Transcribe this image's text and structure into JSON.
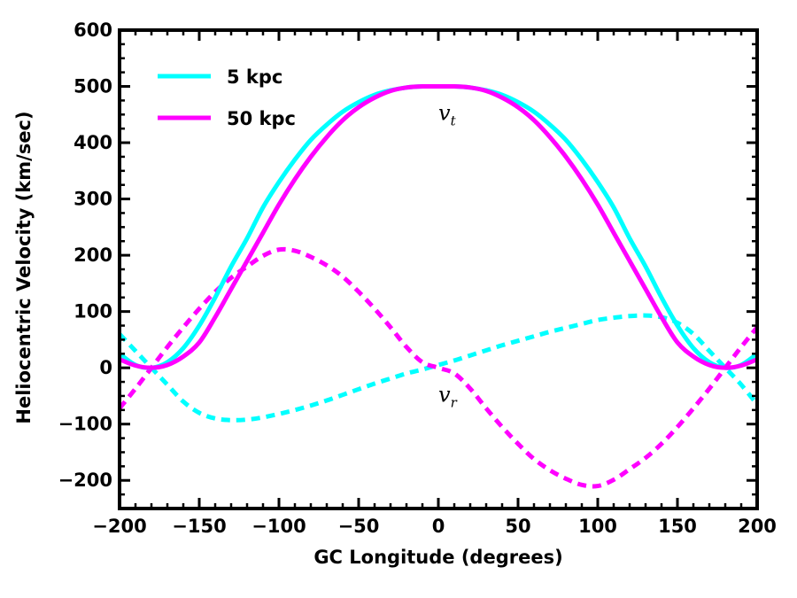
{
  "chart_data": {
    "type": "line",
    "title": "",
    "xlabel": "GC Longitude (degrees)",
    "ylabel": "Heliocentric Velocity (km/sec)",
    "xlim": [
      -200,
      200
    ],
    "ylim": [
      -250,
      600
    ],
    "xticks": [
      -200,
      -150,
      -100,
      -50,
      0,
      50,
      100,
      150,
      200
    ],
    "yticks": [
      -200,
      -100,
      0,
      100,
      200,
      300,
      400,
      500,
      600
    ],
    "xtick_labels": [
      "−200",
      "−150",
      "−100",
      "−50",
      "0",
      "50",
      "100",
      "150",
      "200"
    ],
    "ytick_labels": [
      "−200",
      "−100",
      "0",
      "100",
      "200",
      "300",
      "400",
      "500",
      "600"
    ],
    "legend": {
      "position": "top-left",
      "entries": [
        "5 kpc",
        "50 kpc"
      ]
    },
    "colors": {
      "5 kpc": "#00ffff",
      "50 kpc": "#ff00ff"
    },
    "annotations": [
      {
        "text": "v",
        "subscript": "t",
        "x": 0,
        "y": 440
      },
      {
        "text": "v",
        "subscript": "r",
        "x": 0,
        "y": -60
      }
    ],
    "series": [
      {
        "name": "5 kpc",
        "component": "vt",
        "style": "solid",
        "x": [
          -200,
          -190,
          -180,
          -170,
          -160,
          -150,
          -140,
          -130,
          -120,
          -110,
          -100,
          -90,
          -80,
          -70,
          -60,
          -50,
          -40,
          -30,
          -20,
          -10,
          0,
          10,
          20,
          30,
          40,
          50,
          60,
          70,
          80,
          90,
          100,
          110,
          120,
          130,
          140,
          150,
          160,
          170,
          180,
          190,
          200
        ],
        "y": [
          25,
          5,
          0,
          10,
          35,
          75,
          125,
          180,
          230,
          285,
          330,
          370,
          405,
          432,
          455,
          472,
          485,
          493,
          498,
          500,
          500,
          500,
          498,
          493,
          485,
          472,
          455,
          432,
          405,
          370,
          330,
          285,
          230,
          180,
          125,
          75,
          35,
          10,
          0,
          5,
          25
        ]
      },
      {
        "name": "50 kpc",
        "component": "vt",
        "style": "solid",
        "x": [
          -200,
          -190,
          -180,
          -170,
          -160,
          -150,
          -140,
          -130,
          -120,
          -110,
          -100,
          -90,
          -80,
          -70,
          -60,
          -50,
          -40,
          -30,
          -20,
          -10,
          0,
          10,
          20,
          30,
          40,
          50,
          60,
          70,
          80,
          90,
          100,
          110,
          120,
          130,
          140,
          150,
          160,
          170,
          180,
          190,
          200
        ],
        "y": [
          15,
          4,
          0,
          5,
          20,
          45,
          90,
          140,
          190,
          240,
          290,
          335,
          375,
          410,
          440,
          463,
          480,
          492,
          498,
          500,
          500,
          500,
          498,
          492,
          480,
          463,
          440,
          410,
          375,
          335,
          290,
          240,
          190,
          140,
          90,
          45,
          20,
          5,
          0,
          4,
          15
        ]
      },
      {
        "name": "5 kpc",
        "component": "vr",
        "style": "dashed",
        "x": [
          -200,
          -190,
          -180,
          -170,
          -160,
          -150,
          -140,
          -130,
          -120,
          -110,
          -100,
          -90,
          -80,
          -70,
          -60,
          -50,
          -40,
          -30,
          -20,
          -10,
          0,
          10,
          20,
          30,
          40,
          50,
          60,
          70,
          80,
          90,
          100,
          110,
          120,
          130,
          140,
          150,
          160,
          170,
          180,
          190,
          200
        ],
        "y": [
          60,
          30,
          0,
          -30,
          -60,
          -80,
          -90,
          -93,
          -92,
          -88,
          -82,
          -75,
          -67,
          -58,
          -48,
          -38,
          -28,
          -19,
          -10,
          -3,
          5,
          13,
          22,
          31,
          40,
          48,
          56,
          64,
          71,
          78,
          85,
          89,
          92,
          93,
          90,
          80,
          60,
          30,
          0,
          -30,
          -65
        ]
      },
      {
        "name": "50 kpc",
        "component": "vr",
        "style": "dashed",
        "x": [
          -200,
          -190,
          -180,
          -170,
          -160,
          -150,
          -140,
          -130,
          -120,
          -110,
          -100,
          -90,
          -80,
          -70,
          -60,
          -50,
          -40,
          -30,
          -20,
          -10,
          0,
          10,
          20,
          30,
          40,
          50,
          60,
          70,
          80,
          90,
          100,
          110,
          120,
          130,
          140,
          150,
          160,
          170,
          180,
          190,
          200
        ],
        "y": [
          -72,
          -37,
          0,
          37,
          72,
          105,
          135,
          160,
          180,
          199,
          210,
          208,
          197,
          182,
          162,
          135,
          105,
          72,
          37,
          10,
          0,
          -10,
          -37,
          -72,
          -105,
          -135,
          -162,
          -182,
          -197,
          -208,
          -210,
          -199,
          -180,
          -160,
          -135,
          -105,
          -72,
          -37,
          0,
          37,
          72
        ]
      }
    ]
  }
}
